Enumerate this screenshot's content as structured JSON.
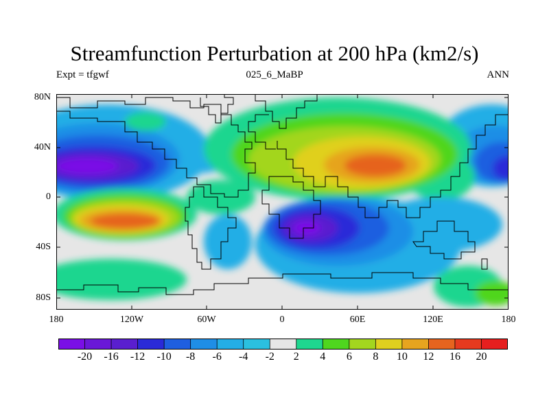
{
  "title": "Streamfunction Perturbation at 200 hPa (km2/s)",
  "subtitle": {
    "left": "Expt = tfgwf",
    "center": "025_6_MaBP",
    "right": "ANN"
  },
  "lat_ticks": [
    "80N",
    "40N",
    "0",
    "40S",
    "80S"
  ],
  "lon_ticks": [
    "180",
    "120W",
    "60W",
    "0",
    "60E",
    "120E",
    "180"
  ],
  "colorbar": {
    "labels": [
      "-20",
      "-16",
      "-12",
      "-10",
      "-8",
      "-6",
      "-4",
      "-2",
      "2",
      "4",
      "6",
      "8",
      "10",
      "12",
      "16",
      "20"
    ],
    "colors": [
      "#7a0fe6",
      "#6a18d8",
      "#5a1fcf",
      "#2a2ad8",
      "#1f5fe0",
      "#1f8ee6",
      "#24aee6",
      "#2bc0e0",
      "#e6e6e6",
      "#1fd68f",
      "#4fd61f",
      "#a3d61f",
      "#e0d01f",
      "#e6a41f",
      "#e6641f",
      "#e63a1f",
      "#e61f1f"
    ]
  }
}
